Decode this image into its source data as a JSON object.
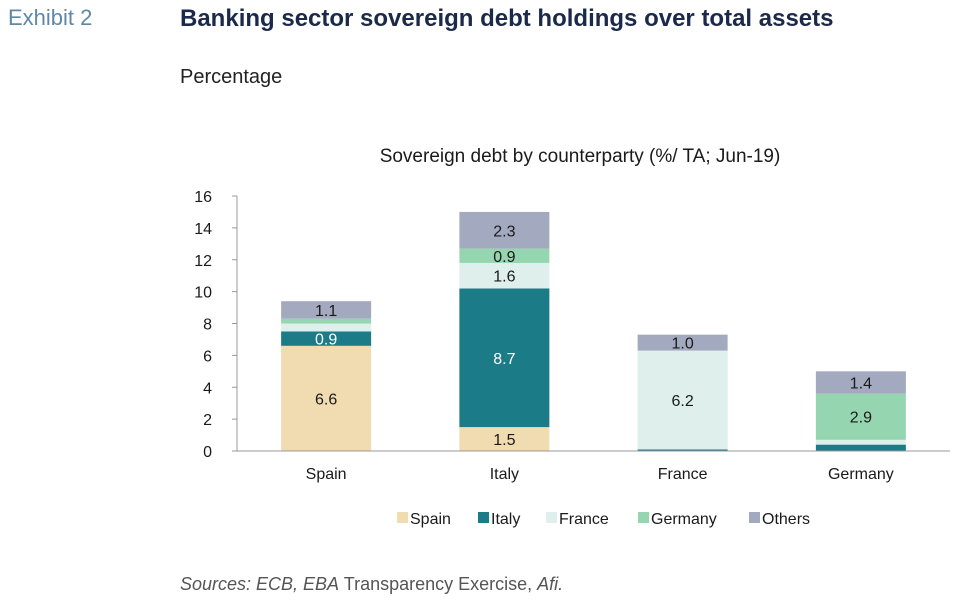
{
  "header": {
    "exhibit": "Exhibit 2",
    "title": "Banking sector sovereign debt holdings over total assets",
    "subtitle": "Percentage"
  },
  "sources": {
    "part1": "Sources: ECB, EBA",
    "part2": " Transparency Exercise, ",
    "part3": "Afi."
  },
  "chart_data": {
    "type": "bar",
    "stacked": true,
    "title": "Sovereign debt by counterparty (%/ TA; Jun-19)",
    "categories": [
      "Spain",
      "Italy",
      "France",
      "Germany"
    ],
    "ylim": [
      0,
      16
    ],
    "yticks": [
      "0",
      "2",
      "4",
      "6",
      "8",
      "10",
      "12",
      "14",
      "16"
    ],
    "legend_position": "bottom",
    "series": [
      {
        "name": "Spain",
        "color": "#f0dcb0",
        "values": [
          6.6,
          1.5,
          0.0,
          0.0
        ],
        "labels": [
          "6.6",
          "1.5",
          "",
          ""
        ],
        "label_color": "#1a1a1a"
      },
      {
        "name": "Italy",
        "color": "#1b7b86",
        "values": [
          0.9,
          8.7,
          0.1,
          0.4
        ],
        "labels": [
          "0.9",
          "8.7",
          "",
          ""
        ],
        "label_color": "#ffffff"
      },
      {
        "name": "France",
        "color": "#deefec",
        "values": [
          0.5,
          1.6,
          6.2,
          0.3
        ],
        "labels": [
          "",
          "1.6",
          "6.2",
          ""
        ],
        "label_color": "#1a1a1a"
      },
      {
        "name": "Germany",
        "color": "#95d6b1",
        "values": [
          0.3,
          0.9,
          0.0,
          2.9
        ],
        "labels": [
          "",
          "0.9",
          "",
          "2.9"
        ],
        "label_color": "#1a1a1a"
      },
      {
        "name": "Others",
        "color": "#a3aabf",
        "values": [
          1.1,
          2.3,
          1.0,
          1.4
        ],
        "labels": [
          "1.1",
          "2.3",
          "1.0",
          "1.4"
        ],
        "label_color": "#1a1a1a"
      }
    ]
  }
}
